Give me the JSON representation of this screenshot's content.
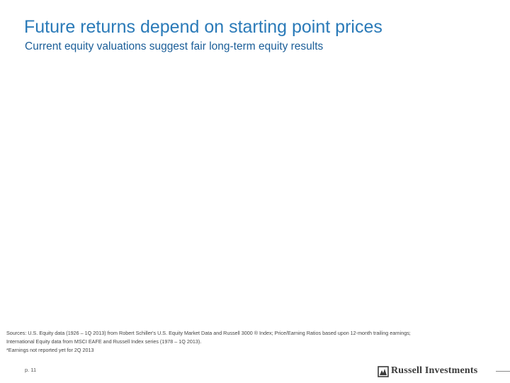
{
  "header": {
    "title": "Future returns depend on starting point prices",
    "subtitle": "Current equity valuations suggest fair long-term equity results"
  },
  "footnotes": [
    "Sources: U.S. Equity data (1926 – 1Q 2013) from Robert Schiller's U.S. Equity Market Data and Russell 3000 ® Index; Price/Earning Ratios based upon 12-month trailing earnings;",
    "International Equity data from MSCI EAFE and Russell Index series (1978 – 1Q 2013).",
    "*Earnings not reported yet for 2Q 2013"
  ],
  "footer": {
    "page": "p. 11",
    "logo": "Russell Investments"
  }
}
